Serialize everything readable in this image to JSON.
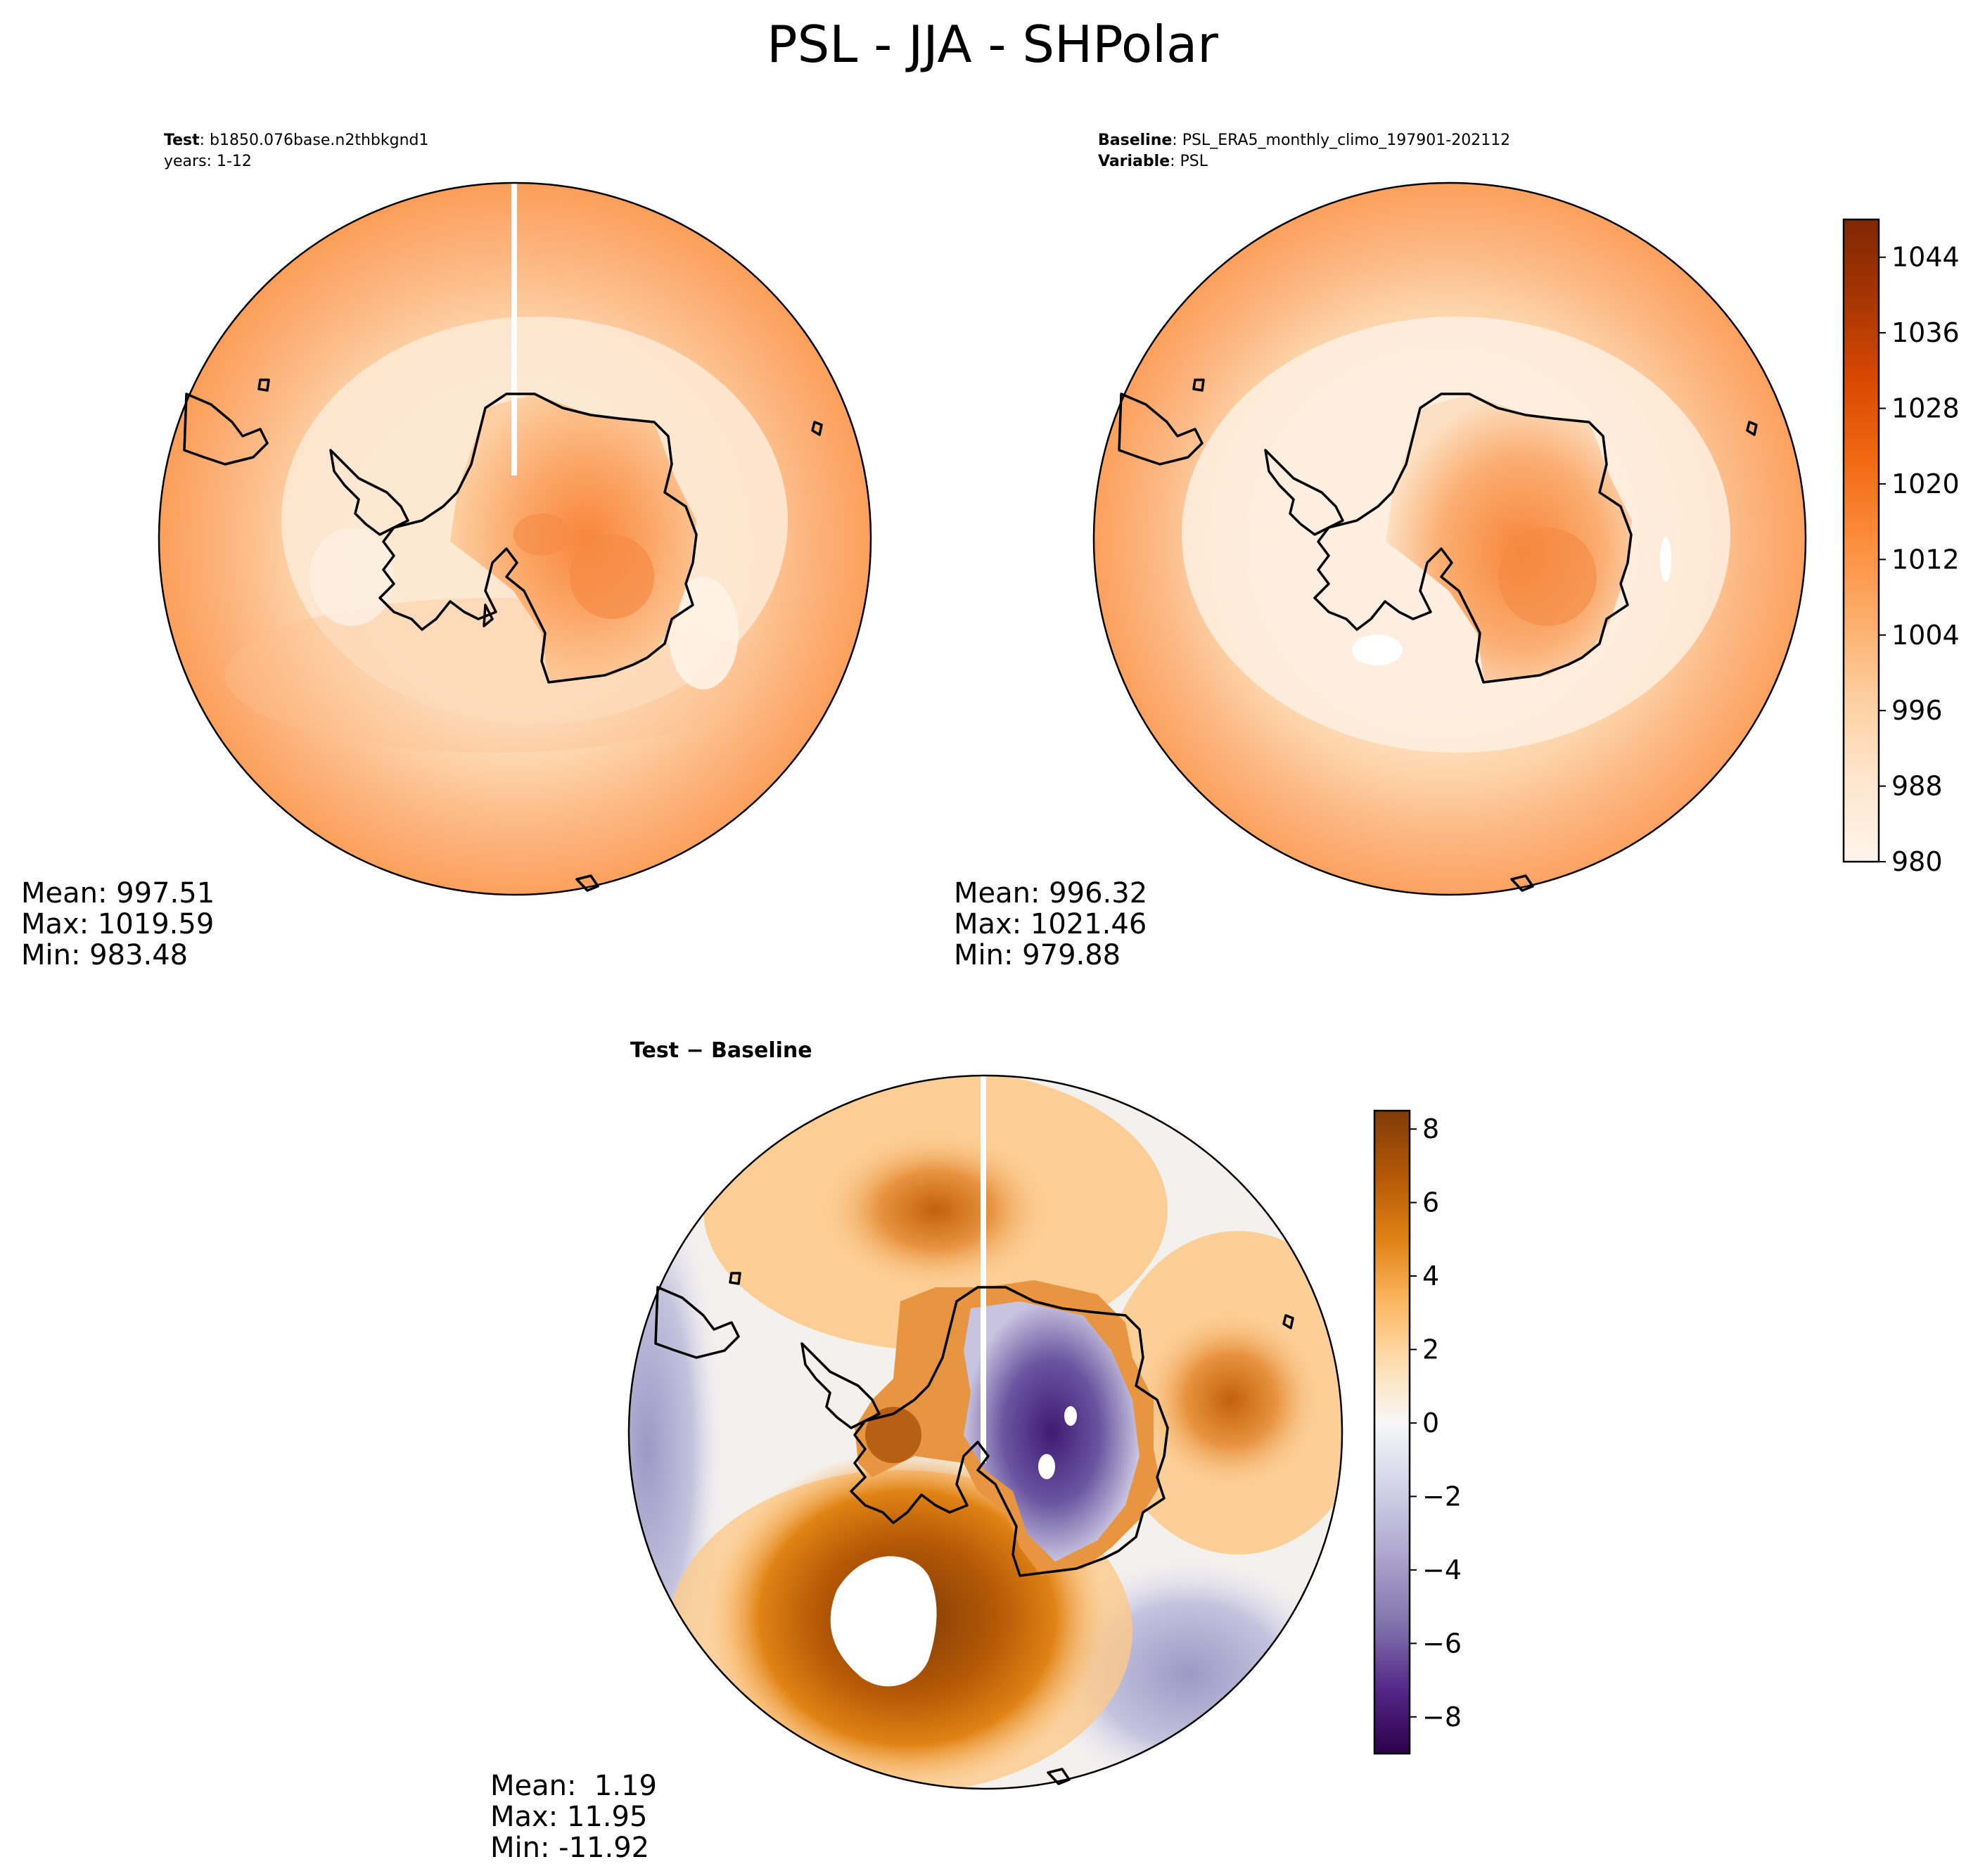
{
  "figure": {
    "title": "PSL - JJA - SHPolar"
  },
  "panels": {
    "test": {
      "label_key": "Test",
      "label_sep": ": ",
      "label_value": "b1850.076base.n2thbkgnd1",
      "line2": "years: 1-12",
      "stats": {
        "mean": "Mean: 997.51",
        "max": "Max: 1019.59",
        "min": "Min: 983.48"
      }
    },
    "baseline": {
      "label_key": "Baseline",
      "label_sep": ": ",
      "label_value": "PSL_ERA5_monthly_climo_197901-202112",
      "line2_key": "Variable",
      "line2_sep": ": ",
      "line2_value": "PSL",
      "stats": {
        "mean": "Mean: 996.32",
        "max": "Max: 1021.46",
        "min": "Min: 979.88"
      }
    },
    "diff": {
      "title": "Test − Baseline",
      "stats": {
        "mean": "Mean:  1.19",
        "max": "Max: 11.95",
        "min": "Min: -11.92"
      }
    }
  },
  "colorbars": {
    "main": {
      "ticks": [
        "980",
        "988",
        "996",
        "1004",
        "1012",
        "1020",
        "1028",
        "1036",
        "1044"
      ],
      "range": [
        980,
        1048
      ],
      "colormap": "Oranges",
      "colors": [
        "#fff5eb",
        "#fee6ce",
        "#fdd0a2",
        "#fdae6b",
        "#fd8d3c",
        "#f16913",
        "#d94801",
        "#a63603",
        "#7f2704"
      ]
    },
    "diff": {
      "ticks": [
        "−8",
        "−6",
        "−4",
        "−2",
        "0",
        "2",
        "4",
        "6",
        "8"
      ],
      "range": [
        -9,
        8.5
      ],
      "colormap": "PuOr_r",
      "colors": [
        "#2d004b",
        "#542788",
        "#8073ac",
        "#b2abd2",
        "#d8daeb",
        "#f7f7f7",
        "#fee0b6",
        "#fdb863",
        "#e08214",
        "#b35806",
        "#7f3b08"
      ]
    }
  }
}
